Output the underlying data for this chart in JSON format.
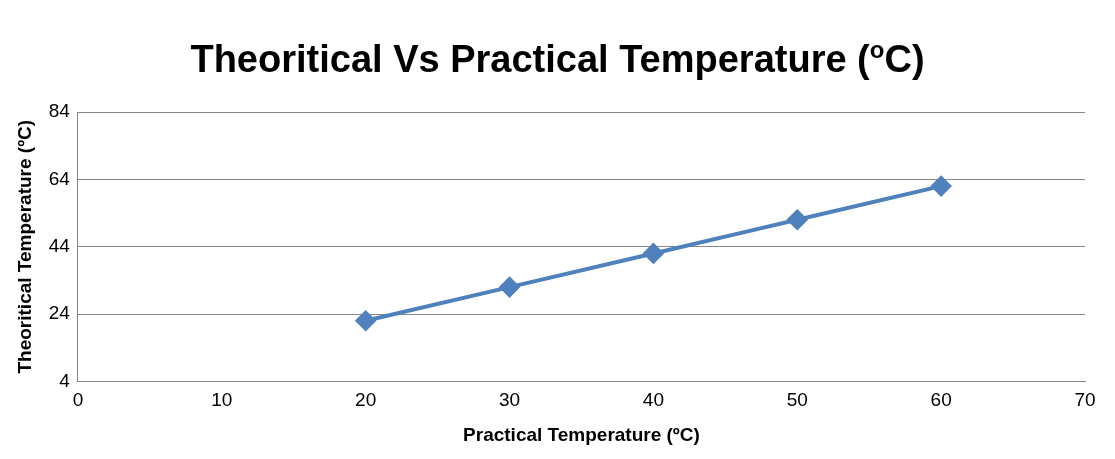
{
  "chart_data": {
    "type": "line",
    "title": "Theoritical Vs Practical Temperature ($^{o}$C)",
    "xlabel": "Practical Temperature (ºC)",
    "ylabel": "Theoritical Temperature (ºC)",
    "x": [
      20,
      30,
      40,
      50,
      60
    ],
    "series": [
      {
        "color": "#4f81bd",
        "values": [
          22,
          32,
          42,
          52,
          62
        ]
      }
    ],
    "xlim": [
      0,
      70
    ],
    "xticks": [
      0,
      10,
      20,
      30,
      40,
      50,
      60,
      70
    ],
    "ylim": [
      4,
      84
    ],
    "yticks": [
      4,
      24,
      44,
      64,
      84
    ],
    "grid": "y",
    "legend": false,
    "marker": "diamond",
    "line_style": "solid"
  }
}
